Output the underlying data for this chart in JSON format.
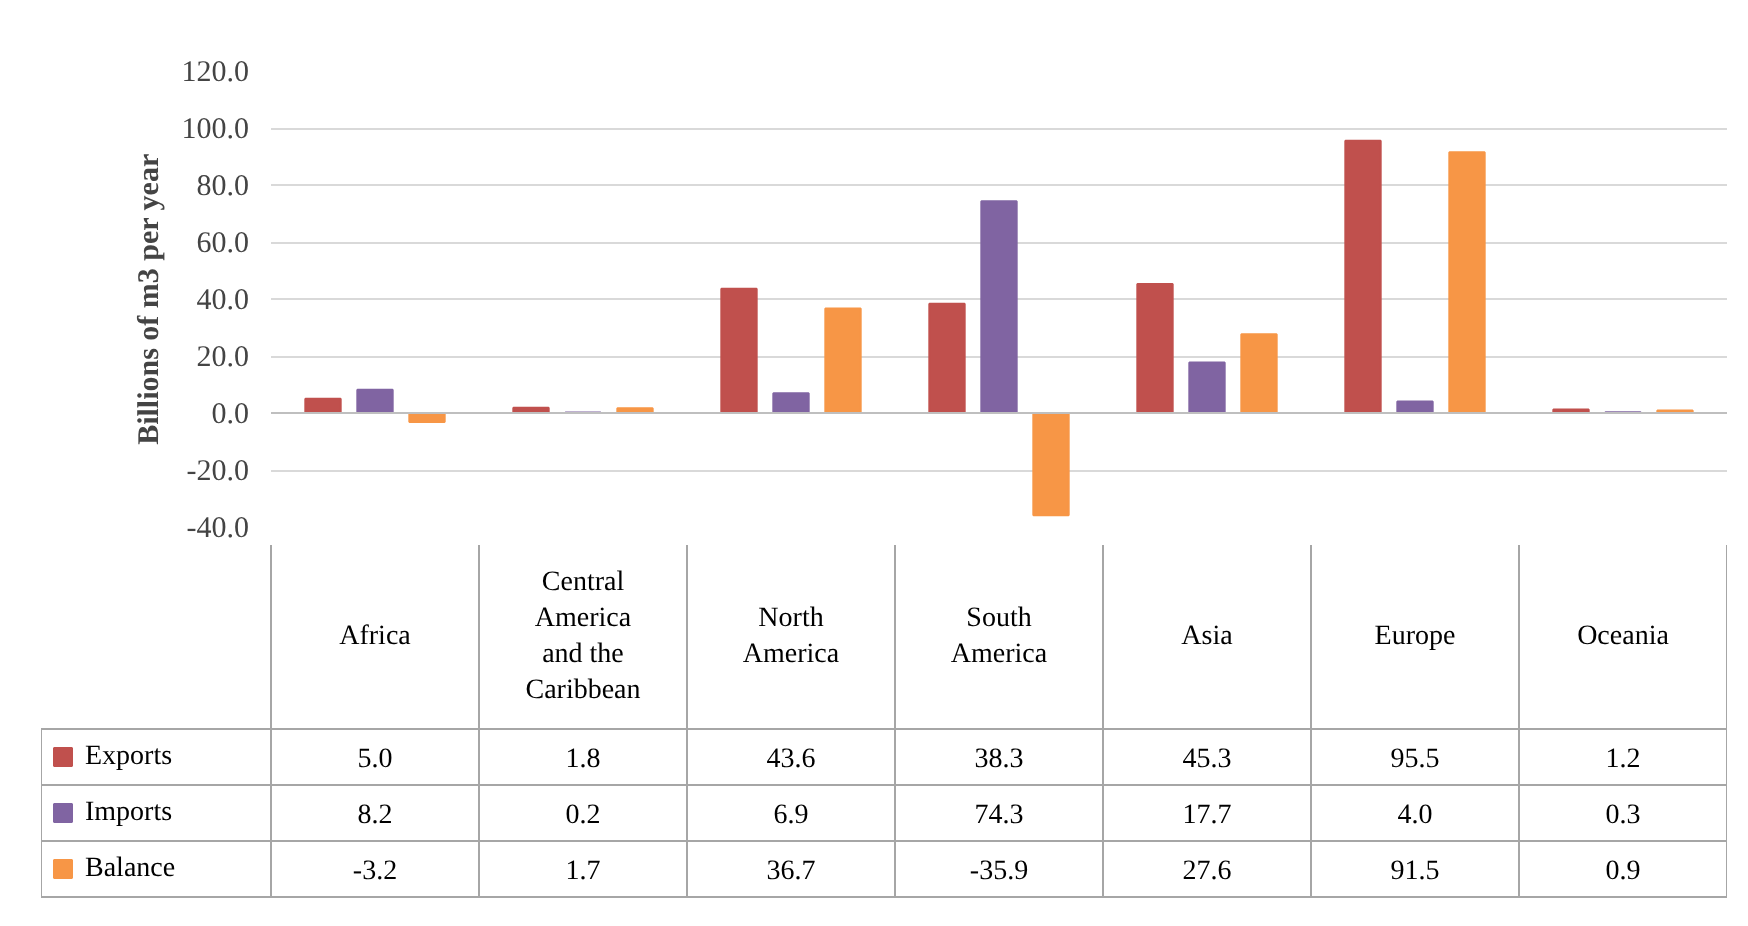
{
  "chart_data": {
    "type": "bar",
    "ylabel": "Billions of m3 per year",
    "categories": [
      "Africa",
      "Central America and the Caribbean",
      "North America",
      "South America",
      "Asia",
      "Europe",
      "Oceania"
    ],
    "series": [
      {
        "name": "Exports",
        "color": "#c0504d",
        "values": [
          5.0,
          1.8,
          43.6,
          38.3,
          45.3,
          95.5,
          1.2
        ],
        "value_labels": [
          "5.0",
          "1.8",
          "43.6",
          "38.3",
          "45.3",
          "95.5",
          "1.2"
        ]
      },
      {
        "name": "Imports",
        "color": "#8064a2",
        "values": [
          8.2,
          0.2,
          6.9,
          74.3,
          17.7,
          4.0,
          0.3
        ],
        "value_labels": [
          "8.2",
          "0.2",
          "6.9",
          "74.3",
          "17.7",
          "4.0",
          "0.3"
        ]
      },
      {
        "name": "Balance",
        "color": "#f79646",
        "values": [
          -3.2,
          1.7,
          36.7,
          -35.9,
          27.6,
          91.5,
          0.9
        ],
        "value_labels": [
          "-3.2",
          "1.7",
          "36.7",
          "-35.9",
          "27.6",
          "91.5",
          "0.9"
        ]
      }
    ],
    "ylim": [
      -40,
      120
    ],
    "yticks": [
      {
        "value": -40,
        "label": "-40.0"
      },
      {
        "value": -20,
        "label": "-20.0"
      },
      {
        "value": 0,
        "label": "0.0"
      },
      {
        "value": 20,
        "label": "20.0"
      },
      {
        "value": 40,
        "label": "40.0"
      },
      {
        "value": 60,
        "label": "60.0"
      },
      {
        "value": 80,
        "label": "80.0"
      },
      {
        "value": 100,
        "label": "100.0"
      },
      {
        "value": 120,
        "label": "120.0"
      }
    ],
    "grid": "y",
    "legend": "bottom left"
  }
}
